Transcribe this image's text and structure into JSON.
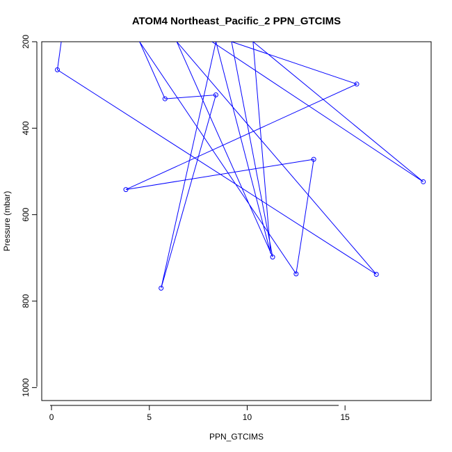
{
  "chart_data": {
    "type": "line",
    "title": "ATOM4 Northeast_Pacific_2 PPN_GTCIMS",
    "xlabel": "PPN_GTCIMS",
    "ylabel": "Pressure (mbar)",
    "xlim": [
      -0.5,
      19.4
    ],
    "ylim": [
      1030,
      200
    ],
    "y_reversed": true,
    "grid": false,
    "x_ticks": [
      0,
      5,
      10,
      15
    ],
    "y_ticks": [
      200,
      400,
      600,
      800,
      1000
    ],
    "x_tick_labels": [
      "0",
      "5",
      "10",
      "15"
    ],
    "y_tick_labels": [
      "200",
      "400",
      "600",
      "800",
      "1000"
    ],
    "series": [
      {
        "color": "#0000ff",
        "points": [
          {
            "x": 0.5,
            "y": 200
          },
          {
            "x": 0.3,
            "y": 265
          },
          {
            "x": 16.6,
            "y": 738
          },
          {
            "x": 6.4,
            "y": 200
          },
          {
            "x": 11.3,
            "y": 698
          },
          {
            "x": 9.2,
            "y": 200
          },
          {
            "x": 15.6,
            "y": 298
          },
          {
            "x": 3.8,
            "y": 542
          },
          {
            "x": 13.4,
            "y": 472
          },
          {
            "x": 12.5,
            "y": 737
          },
          {
            "x": 4.5,
            "y": 200
          },
          {
            "x": 5.8,
            "y": 332
          },
          {
            "x": 8.4,
            "y": 323
          },
          {
            "x": 5.6,
            "y": 770
          },
          {
            "x": 8.4,
            "y": 200
          },
          {
            "x": 11.2,
            "y": 690
          },
          {
            "x": 10.3,
            "y": 200
          },
          {
            "x": 19.0,
            "y": 524
          },
          {
            "x": 8.2,
            "y": 200
          }
        ],
        "markers": [
          {
            "x": 0.3,
            "y": 265
          },
          {
            "x": 16.6,
            "y": 738
          },
          {
            "x": 11.3,
            "y": 698
          },
          {
            "x": 15.6,
            "y": 298
          },
          {
            "x": 3.8,
            "y": 542
          },
          {
            "x": 13.4,
            "y": 472
          },
          {
            "x": 12.5,
            "y": 737
          },
          {
            "x": 5.8,
            "y": 332
          },
          {
            "x": 8.4,
            "y": 323
          },
          {
            "x": 5.6,
            "y": 770
          },
          {
            "x": 19.0,
            "y": 524
          }
        ]
      }
    ]
  }
}
